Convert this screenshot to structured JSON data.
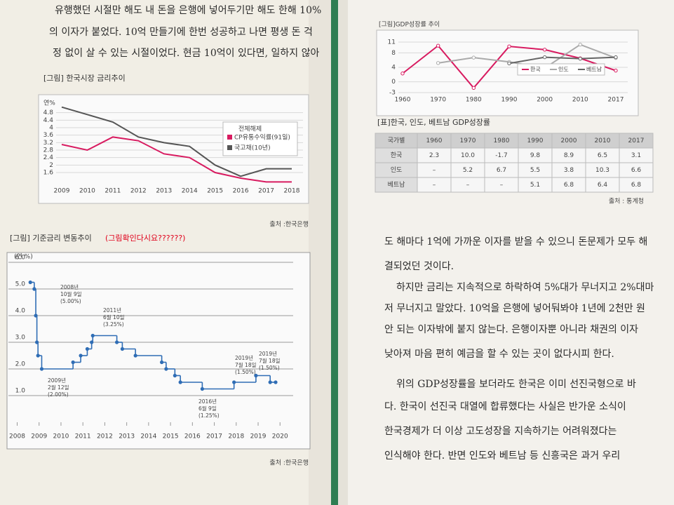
{
  "left_page": {
    "paragraph": [
      "유행했던 시절만 해도 내 돈을 은행에 넣어두기만 해도 한해 10%",
      "의 이자가 붙었다. 10억 만들기에 한번 성공하고 나면 평생 돈 걱",
      "정 없이 살 수 있는 시절이었다. 현금 10억이 있다면, 일하지 않아"
    ],
    "chart1": {
      "type": "line",
      "title": "[그림] 한국시장 금리추이",
      "y_unit": "연%",
      "categories": [
        "2009",
        "2010",
        "2011",
        "2012",
        "2013",
        "2014",
        "2015",
        "2016",
        "2017",
        "2018"
      ],
      "ylim": [
        1.0,
        5.2
      ],
      "yticks": [
        1.6,
        2,
        2.4,
        2.8,
        3.2,
        3.6,
        4,
        4.4,
        4.8
      ],
      "grid": true,
      "legend_title": "전체해제",
      "series": [
        {
          "name": "CP유통수익률(91일)",
          "color": "#d81b60",
          "values": [
            3.1,
            2.8,
            3.5,
            3.3,
            2.6,
            2.4,
            1.6,
            1.3,
            1.1,
            1.1
          ]
        },
        {
          "name": "국고채(10년)",
          "color": "#555555",
          "values": [
            5.1,
            4.7,
            4.3,
            3.5,
            3.2,
            3.0,
            2.0,
            1.4,
            1.8,
            1.8
          ]
        }
      ],
      "source": "출처 :한국은행"
    },
    "chart2": {
      "type": "step",
      "title": "[그림] 기준금리 변동추이",
      "title_note": "(그림확인다시요??????)",
      "y_unit": "(연 %)",
      "x": [
        2008.6,
        2008.78,
        2008.85,
        2008.9,
        2008.95,
        2009.12,
        2010.55,
        2010.9,
        2011.2,
        2011.4,
        2011.45,
        2012.55,
        2012.8,
        2013.4,
        2014.6,
        2014.8,
        2015.2,
        2015.45,
        2016.45,
        2017.9,
        2018.9,
        2019.55,
        2019.8
      ],
      "values": [
        5.25,
        5.0,
        4.0,
        3.0,
        2.5,
        2.0,
        2.25,
        2.5,
        2.75,
        3.0,
        3.25,
        3.0,
        2.75,
        2.5,
        2.25,
        2.0,
        1.75,
        1.5,
        1.25,
        1.5,
        1.75,
        1.5,
        1.5
      ],
      "xlim": [
        2007.6,
        2020.6
      ],
      "xticks": [
        2008,
        2009,
        2010,
        2011,
        2012,
        2013,
        2014,
        2015,
        2016,
        2017,
        2018,
        2019,
        2020
      ],
      "ylim": [
        0,
        6
      ],
      "yticks": [
        {
          "value": 1,
          "label": "1.0"
        },
        {
          "value": 2,
          "label": "2.0"
        },
        {
          "value": 3,
          "label": "3.0"
        },
        {
          "value": 4,
          "label": "4.0"
        },
        {
          "value": 5,
          "label": "5.0"
        },
        {
          "value": 6,
          "label": "6.0"
        }
      ],
      "color": "#2f6db5",
      "grid": true,
      "annotations": [
        [
          "2008년",
          "10월 9일",
          "(5.00%)"
        ],
        [
          "2011년",
          "6월 10일",
          "(3.25%)"
        ],
        [
          "2009년",
          "2월 12일",
          "(2.00%)"
        ],
        [
          "2016년",
          "6월 9일",
          "(1.25%)"
        ],
        [
          "2019년",
          "7월 18일",
          "(1.50%)"
        ],
        [
          "2019년",
          "7월 18일",
          "(1.50%)"
        ]
      ],
      "source": "출처 :한국은행"
    }
  },
  "right_page": {
    "chart3": {
      "type": "line",
      "title": "[그림]GDP성장률 추이",
      "categories": [
        "1960",
        "1970",
        "1980",
        "1990",
        "2000",
        "2010",
        "2017"
      ],
      "ylim": [
        -3,
        11
      ],
      "yticks": [
        -3,
        0,
        4,
        8,
        11
      ],
      "grid": true,
      "series": [
        {
          "name": "한국",
          "color": "#d81b60",
          "values": [
            2.3,
            10.0,
            -1.7,
            9.8,
            8.9,
            6.5,
            3.1
          ]
        },
        {
          "name": "인도",
          "color": "#aaaaaa",
          "values": [
            null,
            5.2,
            6.7,
            5.5,
            3.8,
            10.3,
            6.6
          ]
        },
        {
          "name": "베트남",
          "color": "#666666",
          "values": [
            null,
            null,
            null,
            5.1,
            6.8,
            6.4,
            6.8
          ]
        }
      ]
    },
    "table": {
      "title": "[표]한국, 인도, 베트남 GDP성장률",
      "header": [
        "국가별",
        "1960",
        "1970",
        "1980",
        "1990",
        "2000",
        "2010",
        "2017"
      ],
      "rows": [
        [
          "한국",
          "2.3",
          "10.0",
          "-1.7",
          "9.8",
          "8.9",
          "6.5",
          "3.1"
        ],
        [
          "인도",
          "–",
          "5.2",
          "6.7",
          "5.5",
          "3.8",
          "10.3",
          "6.6"
        ],
        [
          "베트남",
          "–",
          "–",
          "–",
          "5.1",
          "6.8",
          "6.4",
          "6.8"
        ]
      ],
      "source": "출처 : 통계청"
    },
    "paragraph": [
      "도 해마다 1억에 가까운 이자를 받을 수 있으니 돈문제가 모두 해",
      "결되었던 것이다.",
      "하지만 금리는 지속적으로 하락하여 5%대가 무너지고 2%대마",
      "저 무너지고 말았다. 10억을 은행에 넣어둬봐야 1년에 2천만 원",
      "안 되는 이자밖에 붙지 않는다. 은행이자뿐 아니라 채권의 이자",
      "낮아져 마음 편히 예금을 할 수 있는 곳이 없다시피 한다.",
      "위의 GDP성장률을 보더라도 한국은 이미 선진국형으로 바",
      "다. 한국이 선진국 대열에 합류했다는 사실은 반가운 소식이",
      "한국경제가 더 이상 고도성장을 지속하기는 어려워졌다는",
      "인식해야 한다. 반면 인도와 베트남 등 신흥국은 과거 우리"
    ]
  }
}
